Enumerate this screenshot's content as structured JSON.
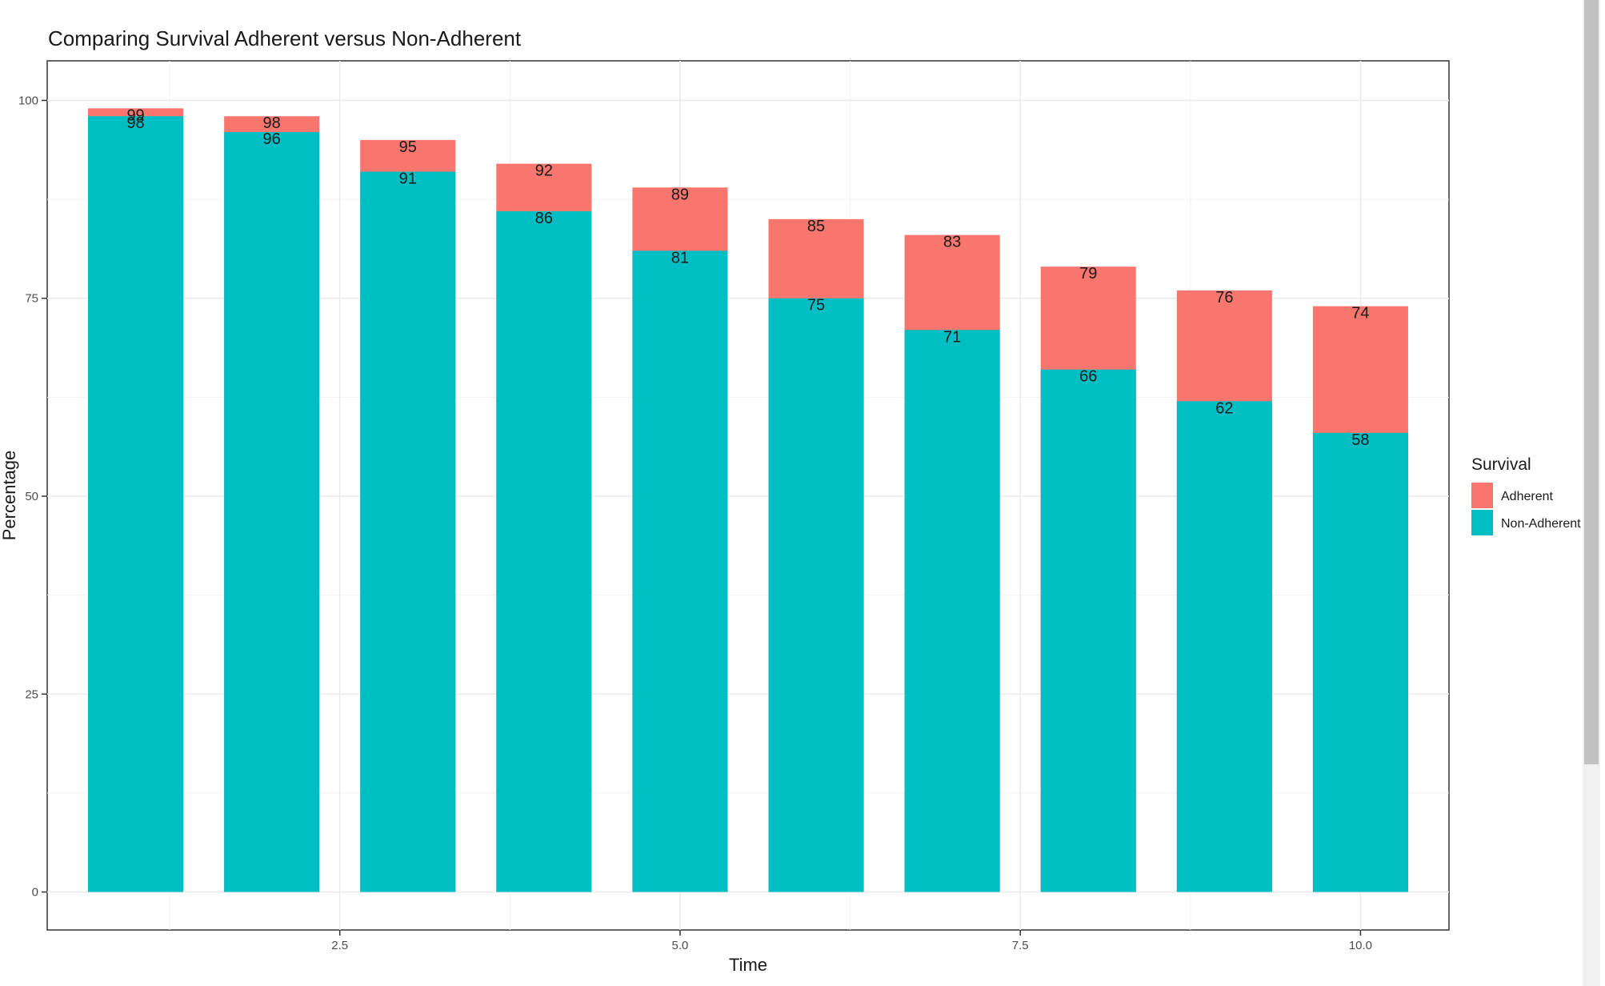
{
  "chart_data": {
    "type": "bar",
    "stacked": false,
    "title": "Comparing Survival Adherent versus Non-Adherent",
    "xlabel": "Time",
    "ylabel": "Percentage",
    "x": [
      1,
      2,
      3,
      4,
      5,
      6,
      7,
      8,
      9,
      10
    ],
    "xlim": [
      0.35,
      10.65
    ],
    "ylim": [
      -4.8,
      105
    ],
    "xticks": [
      2.5,
      5.0,
      7.5,
      10.0
    ],
    "xtick_labels": [
      "2.5",
      "5.0",
      "7.5",
      "10.0"
    ],
    "yticks": [
      0,
      25,
      50,
      75,
      100
    ],
    "ytick_labels": [
      "0",
      "25",
      "50",
      "75",
      "100"
    ],
    "grid": true,
    "legend": {
      "title": "Survival",
      "position": "right",
      "entries": [
        "Adherent",
        "Non-Adherent"
      ]
    },
    "series": [
      {
        "name": "Adherent",
        "color": "#F8766D",
        "values": [
          99,
          98,
          95,
          92,
          89,
          85,
          83,
          79,
          76,
          74
        ]
      },
      {
        "name": "Non-Adherent",
        "color": "#00BFC4",
        "values": [
          98,
          96,
          91,
          86,
          81,
          75,
          71,
          66,
          62,
          58
        ]
      }
    ],
    "data_labels": true
  }
}
